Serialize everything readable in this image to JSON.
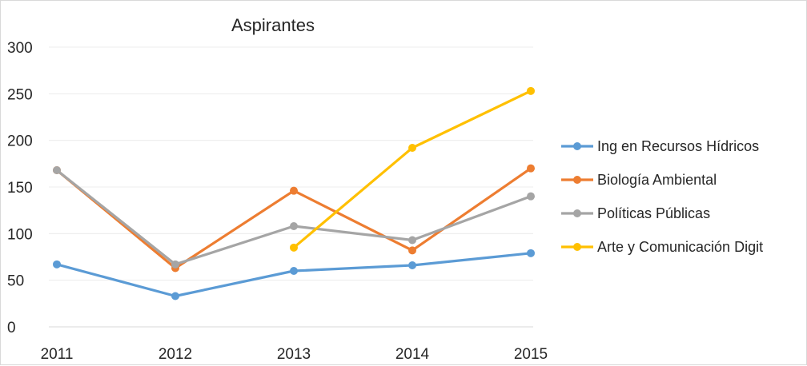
{
  "chart_data": {
    "type": "line",
    "title": "Aspirantes",
    "categories": [
      "2011",
      "2012",
      "2013",
      "2014",
      "2015"
    ],
    "ylim": [
      0,
      300
    ],
    "yticks": [
      0,
      50,
      100,
      150,
      200,
      250,
      300
    ],
    "grid": true,
    "legend_position": "right",
    "series": [
      {
        "name": "Ing en Recursos Hídricos",
        "color": "#5b9bd5",
        "values": [
          67,
          33,
          60,
          66,
          79
        ]
      },
      {
        "name": "Biología Ambiental",
        "color": "#ed7d31",
        "values": [
          168,
          63,
          146,
          82,
          170
        ]
      },
      {
        "name": "Políticas Públicas",
        "color": "#a5a5a5",
        "values": [
          168,
          67,
          108,
          93,
          140
        ]
      },
      {
        "name": "Arte y Comunicación Digit",
        "color": "#ffc000",
        "values": [
          null,
          null,
          85,
          192,
          253
        ]
      }
    ]
  }
}
